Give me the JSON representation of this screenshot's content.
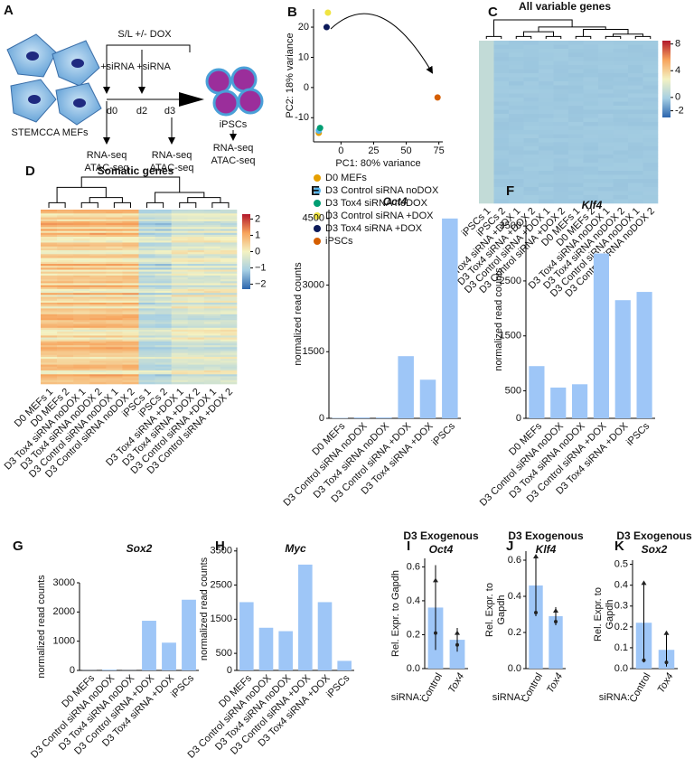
{
  "diagram": {
    "panel": "A",
    "treatment": "S/L +/- DOX",
    "sirna_1": "+siRNA",
    "sirna_2": "+siRNA",
    "days": [
      "d0",
      "d2",
      "d3"
    ],
    "start_label": "STEMCCA MEFs",
    "end_label": "iPSCs",
    "assays": [
      [
        "RNA-seq",
        "ATAC-seq"
      ],
      [
        "RNA-seq",
        "ATAC-seq"
      ],
      [
        "RNA-seq",
        "ATAC-seq"
      ]
    ]
  },
  "chart_data": [
    {
      "type": "scatter",
      "panel": "B",
      "xlabel": "PC1: 80% variance",
      "ylabel": "PC2: 18% variance",
      "xlim": [
        -21,
        78
      ],
      "ylim": [
        -18,
        26
      ],
      "xticks": [
        0,
        25,
        50,
        75
      ],
      "yticks": [
        -10,
        0,
        10,
        20
      ],
      "series": [
        {
          "name": "D0 MEFs",
          "color": "#e69f00",
          "x": [
            -17
          ],
          "values": [
            -15
          ]
        },
        {
          "name": "D3 Control siRNA noDOX",
          "color": "#56b4e9",
          "x": [
            -17
          ],
          "values": [
            -14.3
          ]
        },
        {
          "name": "D3 Tox4 siRNA noDOX",
          "color": "#009e73",
          "x": [
            -16
          ],
          "values": [
            -13.4
          ]
        },
        {
          "name": "D3 Control siRNA +DOX",
          "color": "#f0e442",
          "x": [
            -10
          ],
          "values": [
            24.8
          ]
        },
        {
          "name": "D3 Tox4 siRNA +DOX",
          "color": "#0c1a5a",
          "x": [
            -11
          ],
          "values": [
            20
          ]
        },
        {
          "name": "iPSCs",
          "color": "#d55e00",
          "x": [
            74
          ],
          "values": [
            -3.3
          ]
        }
      ]
    },
    {
      "type": "heatmap",
      "panel": "C",
      "title": "All variable genes",
      "columns": [
        "iPSCs 1",
        "iPSCs 2",
        "D3 Tox4 siRNA +DOX 1",
        "D3 Tox4 siRNA +DOX 2",
        "D3 Control siRNA +DOX 1",
        "D3 Control siRNA +DOX 2",
        "D0 MEFs 1",
        "D0 MEFs 2",
        "D3 Tox4 siRNA noDOX 1",
        "D3 Tox4 siRNA noDOX 2",
        "D3 Control siRNA noDOX 1",
        "D3 Control siRNA noDOX 2"
      ],
      "clim": [
        -3,
        8.5
      ],
      "colorbar_ticks": [
        8,
        4,
        0,
        -2
      ]
    },
    {
      "type": "heatmap",
      "panel": "D",
      "title": "Somatic genes",
      "columns": [
        "D0 MEFs 1",
        "D0 MEFs 2",
        "D3 Tox4 siRNA noDOX 1",
        "D3 Tox4 siRNA noDOX 2",
        "D3 Control siRNA noDOX 1",
        "D3 Control siRNA noDOX 2",
        "iPSCs 1",
        "iPSCs 2",
        "D3 Tox4 siRNA +DOX 1",
        "D3 Tox4 siRNA +DOX 2",
        "D3 Control siRNA +DOX 1",
        "D3 Control siRNA +DOX 2"
      ],
      "clim": [
        -2.3,
        2.3
      ],
      "colorbar_ticks": [
        2,
        1,
        0,
        {
          "value": -1,
          "label": "−1"
        },
        {
          "value": -2,
          "label": "−2"
        }
      ]
    },
    {
      "type": "bar",
      "panel": "E",
      "title": "Oct4",
      "ylabel": "normalized read counts",
      "color": "#9ec6f7",
      "categories": [
        "D0 MEFs",
        "D3 Control siRNA noDOX",
        "D3 Tox4 siRNA noDOX",
        "D3 Control siRNA +DOX",
        "D3 Tox4 siRNA +DOX",
        "iPSCs"
      ],
      "values": [
        10,
        20,
        20,
        1400,
        870,
        4500
      ],
      "ylim": [
        0,
        4700
      ],
      "yticks": [
        0,
        1500,
        3000,
        4500
      ]
    },
    {
      "type": "bar",
      "panel": "F",
      "title": "Klf4",
      "ylabel": "normalized read counts",
      "color": "#9ec6f7",
      "categories": [
        "D0 MEFs",
        "D3 Control siRNA noDOX",
        "D3 Tox4 siRNA noDOX",
        "D3 Control siRNA +DOX",
        "D3 Tox4 siRNA +DOX",
        "iPSCs"
      ],
      "values": [
        950,
        560,
        620,
        3000,
        2150,
        2300
      ],
      "ylim": [
        0,
        3600
      ],
      "yticks": [
        0,
        500,
        1500,
        2500,
        3500
      ]
    },
    {
      "type": "bar",
      "panel": "G",
      "title": "Sox2",
      "ylabel": "normalized read counts",
      "color": "#9ec6f7",
      "categories": [
        "D0 MEFs",
        "D3 Control siRNA noDOX",
        "D3 Tox4 siRNA noDOX",
        "D3 Control siRNA +DOX",
        "D3 Tox4 siRNA +DOX",
        "iPSCs"
      ],
      "values": [
        5,
        25,
        5,
        1700,
        950,
        2420
      ],
      "ylim": [
        0,
        3000
      ],
      "yticks": [
        0,
        1000,
        2000,
        3000
      ]
    },
    {
      "type": "bar",
      "panel": "H",
      "title": "Myc",
      "ylabel": "normalized read counts",
      "color": "#9ec6f7",
      "categories": [
        "D0 MEFs",
        "D3 Control siRNA noDOX",
        "D3 Tox4 siRNA noDOX",
        "D3 Control siRNA +DOX",
        "D3 Tox4 siRNA +DOX",
        "iPSCs"
      ],
      "values": [
        2000,
        1250,
        1150,
        3100,
        2000,
        280
      ],
      "ylim": [
        0,
        3600
      ],
      "yticks": [
        0,
        500,
        1500,
        2500,
        3500
      ]
    },
    {
      "type": "bar",
      "panel": "I",
      "title": "D3 Exogenous",
      "subtitle": "Oct4",
      "ylabel": [
        "Rel. Expr. to Gapdh"
      ],
      "x_label": "siRNA:",
      "color": "#9ec6f7",
      "categories": [
        "Control",
        "Tox4"
      ],
      "values": [
        0.36,
        0.17
      ],
      "errors": [
        0.25,
        0.07
      ],
      "points": [
        [
          0.52,
          0.21
        ],
        [
          0.21,
          0.14
        ]
      ],
      "ylim": [
        0,
        0.65
      ],
      "yticks": [
        {
          "value": 0,
          "label": "0.0"
        },
        {
          "value": 0.2,
          "label": "0.2"
        },
        {
          "value": 0.4,
          "label": "0.4"
        },
        {
          "value": 0.6,
          "label": "0.6"
        }
      ]
    },
    {
      "type": "bar",
      "panel": "J",
      "title": "D3 Exogenous",
      "subtitle": "Klf4",
      "ylabel": [
        "Rel. Expr. to",
        "Gapdh"
      ],
      "x_label": "siRNA:",
      "color": "#9ec6f7",
      "categories": [
        "Control",
        "Tox4"
      ],
      "values": [
        0.46,
        0.29
      ],
      "errors": [
        0.17,
        0.05
      ],
      "points": [
        [
          0.62,
          0.31
        ],
        [
          0.32,
          0.26
        ]
      ],
      "ylim": [
        0,
        0.65
      ],
      "yticks": [
        {
          "value": 0,
          "label": "0.0"
        },
        {
          "value": 0.2,
          "label": "0.2"
        },
        {
          "value": 0.4,
          "label": "0.4"
        },
        {
          "value": 0.6,
          "label": "0.6"
        }
      ]
    },
    {
      "type": "bar",
      "panel": "K",
      "title": "D3 Exogenous",
      "subtitle": "Sox2",
      "ylabel": [
        "Rel. Expr. to",
        "Gapdh"
      ],
      "x_label": "siRNA:",
      "color": "#9ec6f7",
      "categories": [
        "Control",
        "Tox4"
      ],
      "values": [
        0.22,
        0.09
      ],
      "errors": [
        0.19,
        0.08
      ],
      "points": [
        [
          0.41,
          0.04
        ],
        [
          0.17,
          0.03
        ]
      ],
      "ylim": [
        0,
        0.52
      ],
      "yticks": [
        {
          "value": 0,
          "label": "0.0"
        },
        {
          "value": 0.1,
          "label": "0.1"
        },
        {
          "value": 0.2,
          "label": "0.2"
        },
        {
          "value": 0.3,
          "label": "0.3"
        },
        {
          "value": 0.4,
          "label": "0.4"
        },
        {
          "value": 0.5,
          "label": "0.5"
        }
      ]
    }
  ]
}
